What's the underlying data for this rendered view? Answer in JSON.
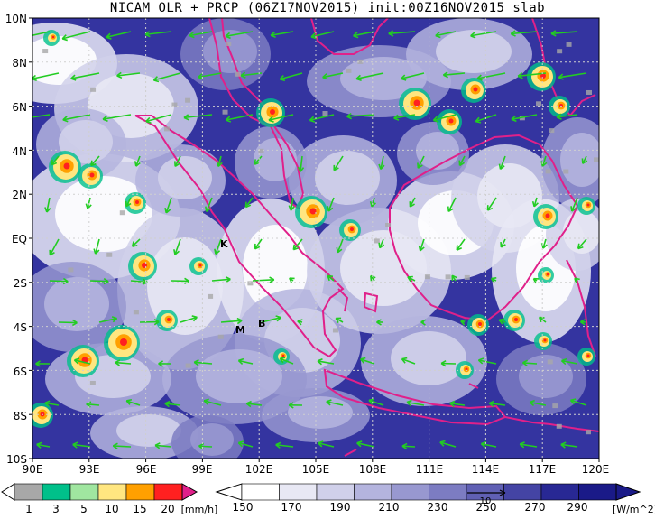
{
  "title": "NICAM OLR + PRCP (06Z17NOV2015) init:00Z16NOV2015 slab",
  "map": {
    "lat_labels": [
      "10N",
      "8N",
      "6N",
      "4N",
      "2N",
      "EQ",
      "2S",
      "4S",
      "6S",
      "8S",
      "10S"
    ],
    "lon_labels": [
      "90E",
      "93E",
      "96E",
      "99E",
      "102E",
      "105E",
      "108E",
      "111E",
      "114E",
      "117E",
      "120E"
    ],
    "place_labels": [
      "K",
      "M",
      "B"
    ],
    "lon_range": [
      90,
      120
    ],
    "lat_range": [
      -10,
      10
    ]
  },
  "prcp_legend": {
    "ticks": [
      "1",
      "3",
      "5",
      "10",
      "15",
      "20"
    ],
    "unit": "[mm/h]",
    "colors": [
      "#a8a8a8",
      "#00c08a",
      "#a0e6a0",
      "#ffe680",
      "#ffa000",
      "#ff2020",
      "#e0208a"
    ]
  },
  "olr_legend": {
    "ticks": [
      "150",
      "170",
      "190",
      "210",
      "230",
      "250",
      "270",
      "290"
    ],
    "unit": "[W/m^2]",
    "vector_ref": "10",
    "colors": [
      "#ffffff",
      "#e8e8f4",
      "#d0d0ea",
      "#b4b4de",
      "#9898d0",
      "#7c7cc2",
      "#6060b4",
      "#4444a4",
      "#282894",
      "#1a1a88"
    ]
  },
  "colors": {
    "coast": "#e0208a",
    "wind": "#22cc22",
    "grid": "#c8c8c8",
    "ocean_deep": "#2a2a90"
  }
}
